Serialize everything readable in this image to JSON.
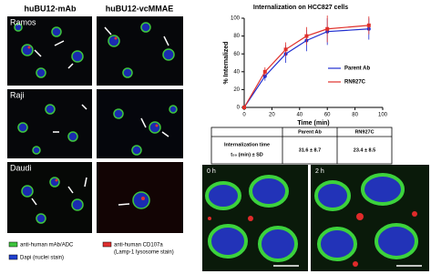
{
  "figure": {
    "columns": [
      "huBU12-mAb",
      "huBU12-vcMMAE"
    ],
    "rows": [
      "Ramos",
      "Raji",
      "Daudi"
    ],
    "legend": [
      "anti-human mAb/ADC",
      "Dapi (nuclei stain)",
      "anti-human CD107a",
      "(Lamp-1 lysosome stain)"
    ],
    "timepoints": [
      "0 h",
      "2 h"
    ]
  },
  "chart_data": {
    "type": "line",
    "title": "Internalization on HCC827 cells",
    "xlabel": "Time (min)",
    "ylabel": "% Internalized",
    "x": [
      0,
      15,
      30,
      45,
      60,
      90
    ],
    "series": [
      {
        "name": "Parent Ab",
        "color": "#1f2fd0",
        "values": [
          0,
          35,
          60,
          75,
          85,
          88
        ],
        "errors": [
          0,
          5,
          10,
          12,
          15,
          12
        ]
      },
      {
        "name": "RN927C",
        "color": "#e0302a",
        "values": [
          0,
          40,
          65,
          80,
          88,
          92
        ],
        "errors": [
          0,
          5,
          8,
          10,
          15,
          10
        ]
      }
    ],
    "xlim": [
      0,
      100
    ],
    "ylim": [
      0,
      100
    ],
    "xticks": [
      0,
      20,
      40,
      60,
      80,
      100
    ],
    "yticks": [
      0,
      20,
      40,
      60,
      80,
      100
    ],
    "legend": "right"
  },
  "table": {
    "header": [
      "Parent Ab",
      "RN927C"
    ],
    "rows": [
      [
        "Internalization time",
        "t₅₀ (min) ± SD",
        "31.6 ± 8.7",
        "23.4 ± 8.5"
      ]
    ]
  }
}
